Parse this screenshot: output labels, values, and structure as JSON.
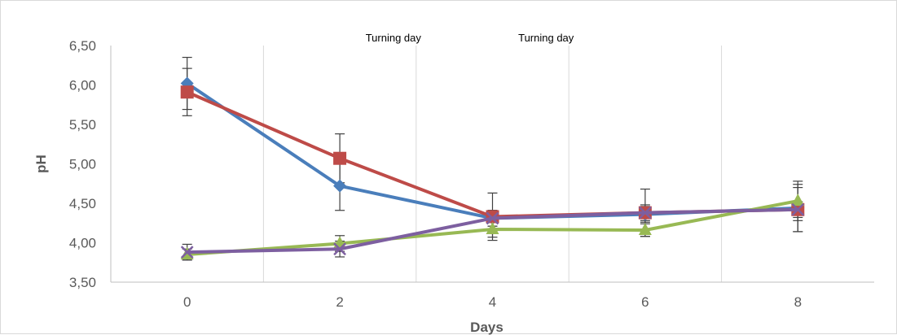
{
  "chart_data": {
    "type": "line",
    "title": "",
    "xlabel": "Days",
    "ylabel": "pH",
    "x": [
      0,
      2,
      4,
      6,
      8
    ],
    "xlim": [
      -1,
      9
    ],
    "ylim": [
      3.5,
      6.5
    ],
    "y_ticks": [
      "3,50",
      "4,00",
      "4,50",
      "5,00",
      "5,50",
      "6,00",
      "6,50"
    ],
    "x_ticks": [
      "0",
      "2",
      "4",
      "6",
      "8"
    ],
    "grid": "vertical",
    "legend": "none",
    "annotations": [
      {
        "text": "Turning day",
        "x": 3
      },
      {
        "text": "Turning day",
        "x": 5
      }
    ],
    "series": [
      {
        "color": "#4a7ebb",
        "marker": "diamond",
        "values": [
          6.02,
          4.72,
          4.31,
          4.36,
          4.44
        ],
        "error": [
          0.33,
          0.31,
          0.1,
          0.1,
          0.3
        ]
      },
      {
        "color": "#be4b48",
        "marker": "square",
        "values": [
          5.91,
          5.07,
          4.33,
          4.38,
          4.42
        ],
        "error": [
          0.3,
          0.31,
          0.3,
          0.3,
          0.28
        ]
      },
      {
        "color": "#98b954",
        "marker": "triangle",
        "values": [
          3.85,
          3.99,
          4.17,
          4.16,
          4.53
        ],
        "error": [
          0.07,
          0.1,
          0.1,
          0.08,
          0.25
        ]
      },
      {
        "color": "#7d5fa0",
        "marker": "x",
        "values": [
          3.88,
          3.92,
          4.31,
          4.38,
          4.42
        ],
        "error": [
          0.1,
          0.1,
          0.1,
          0.1,
          0.1
        ]
      }
    ]
  }
}
